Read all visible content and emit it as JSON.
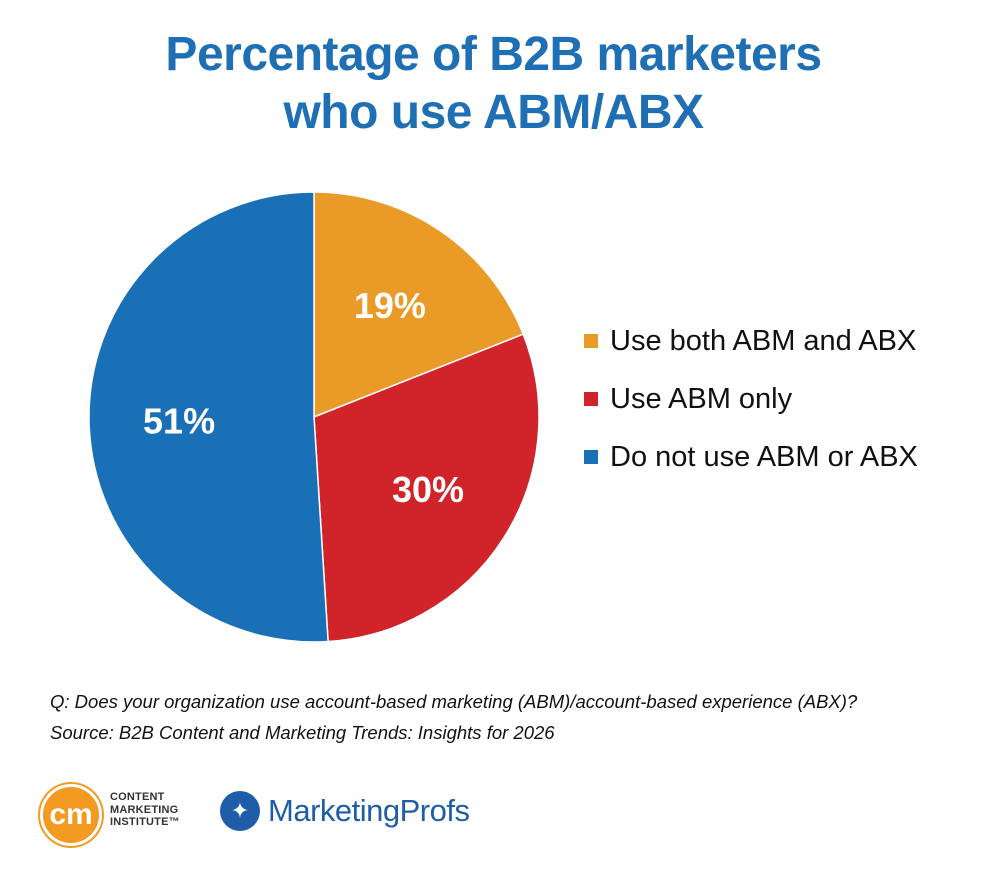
{
  "title": {
    "line1": "Percentage of B2B marketers",
    "line2": "who use ABM/ABX"
  },
  "chart_data": {
    "type": "pie",
    "title": "Percentage of B2B marketers who use ABM/ABX",
    "slices": [
      {
        "label": "Use both ABM and ABX",
        "value": 19,
        "display": "19%",
        "color": "#e99a27"
      },
      {
        "label": "Use ABM only",
        "value": 30,
        "display": "30%",
        "color": "#d0232a"
      },
      {
        "label": "Do not use ABM or ABX",
        "value": 51,
        "display": "51%",
        "color": "#1a70b6"
      }
    ],
    "start": "12 o'clock, clockwise",
    "legend_position": "right"
  },
  "legend": [
    {
      "label": "Use both ABM and ABX",
      "color": "#e99a27"
    },
    {
      "label": "Use ABM only",
      "color": "#d0232a"
    },
    {
      "label": "Do not use ABM or ABX",
      "color": "#1a70b6"
    }
  ],
  "footnote": {
    "question": "Q: Does your organization use account-based marketing (ABM)/account-based experience (ABX)?",
    "source": "Source: B2B Content and Marketing Trends: Insights for 2026"
  },
  "logos": {
    "cmi_mark": "cm",
    "cmi_lines": [
      "CONTENT",
      "MARKETING",
      "INSTITUTE™"
    ],
    "marketingprofs": "MarketingProfs"
  },
  "colors": {
    "title": "#1f6fb5"
  }
}
